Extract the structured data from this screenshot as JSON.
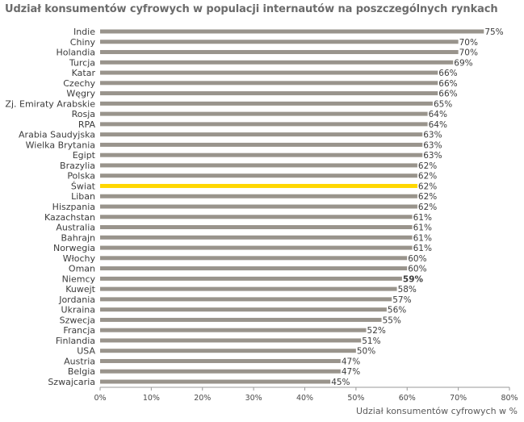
{
  "chart_data": {
    "type": "bar",
    "orientation": "horizontal",
    "title": "Udział konsumentów cyfrowych w populacji internautów na poszczególnych rynkach",
    "xlabel": "Udział konsumentów cyfrowych w %",
    "ylabel": "",
    "xlim": [
      0,
      80
    ],
    "x_ticks": [
      "0%",
      "10%",
      "20%",
      "30%",
      "40%",
      "50%",
      "60%",
      "70%",
      "80%"
    ],
    "grid": false,
    "legend": "none",
    "categories": [
      "Indie",
      "Chiny",
      "Holandia",
      "Turcja",
      "Katar",
      "Czechy",
      "Węgry",
      "Zj. Emiraty Arabskie",
      "Rosja",
      "RPA",
      "Arabia Saudyjska",
      "Wielka Brytania",
      "Egipt",
      "Brazylia",
      "Polska",
      "Świat",
      "Liban",
      "Hiszpania",
      "Kazachstan",
      "Australia",
      "Bahrajn",
      "Norwegia",
      "Włochy",
      "Oman",
      "Niemcy",
      "Kuwejt",
      "Jordania",
      "Ukraina",
      "Szwecja",
      "Francja",
      "Finlandia",
      "USA",
      "Austria",
      "Belgia",
      "Szwajcaria"
    ],
    "values": [
      75,
      70,
      70,
      69,
      66,
      66,
      66,
      65,
      64,
      64,
      63,
      63,
      63,
      62,
      62,
      62,
      62,
      62,
      61,
      61,
      61,
      61,
      60,
      60,
      59,
      58,
      57,
      56,
      55,
      52,
      51,
      50,
      47,
      47,
      45
    ],
    "value_labels": [
      "75%",
      "70%",
      "70%",
      "69%",
      "66%",
      "66%",
      "66%",
      "65%",
      "64%",
      "64%",
      "63%",
      "63%",
      "63%",
      "62%",
      "62%",
      "62%",
      "62%",
      "62%",
      "61%",
      "61%",
      "61%",
      "61%",
      "60%",
      "60%",
      "59%",
      "58%",
      "57%",
      "56%",
      "55%",
      "52%",
      "51%",
      "50%",
      "47%",
      "47%",
      "45%"
    ],
    "highlight_category": "Świat",
    "bold_value_category": "Niemcy",
    "colors": {
      "bar": "#99948c",
      "highlight": "#ffd700",
      "axis": "#999999",
      "text": "#3c3c3c",
      "title": "#6b6b6b"
    }
  }
}
